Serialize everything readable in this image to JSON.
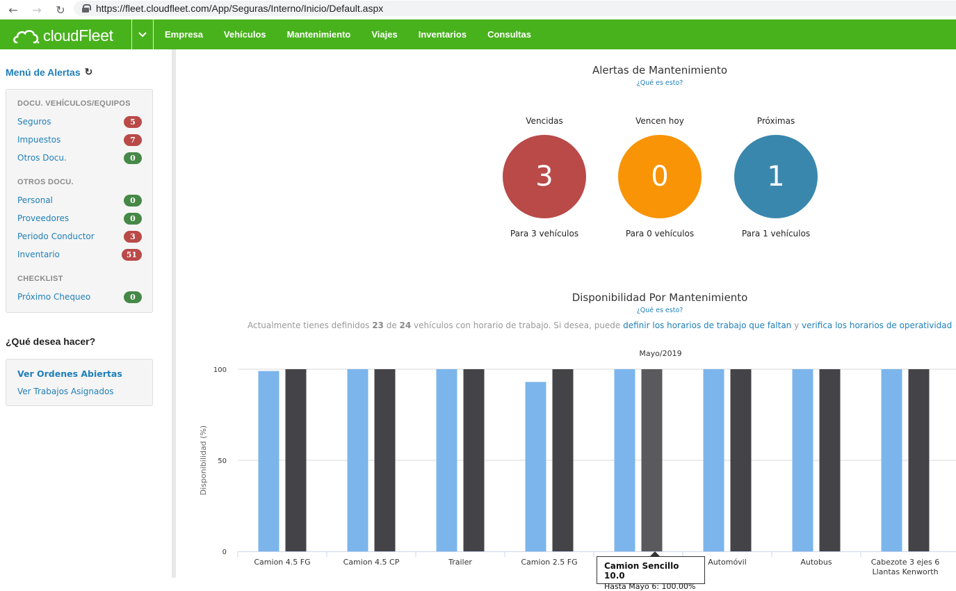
{
  "browser": {
    "url": "https://fleet.cloudfleet.com/App/Seguras/Interno/Inicio/Default.aspx"
  },
  "topnav": {
    "logo": "cloudFleet",
    "menu": [
      "Empresa",
      "Vehículos",
      "Mantenimiento",
      "Viajes",
      "Inventarios",
      "Consultas"
    ],
    "bg_color": "#48b21c"
  },
  "sidebar": {
    "title": "Menú de Alertas",
    "sections": [
      {
        "heading": "DOCU. VEHÍCULOS/EQUIPOS",
        "items": [
          {
            "label": "Seguros",
            "count": "5",
            "status": "red"
          },
          {
            "label": "Impuestos",
            "count": "7",
            "status": "red"
          },
          {
            "label": "Otros Docu.",
            "count": "0",
            "status": "green"
          }
        ]
      },
      {
        "heading": "OTROS DOCU.",
        "items": [
          {
            "label": "Personal",
            "count": "0",
            "status": "green"
          },
          {
            "label": "Proveedores",
            "count": "0",
            "status": "green"
          },
          {
            "label": "Periodo Conductor",
            "count": "3",
            "status": "red"
          },
          {
            "label": "Inventario",
            "count": "51",
            "status": "red"
          }
        ]
      },
      {
        "heading": "CHECKLIST",
        "items": [
          {
            "label": "Próximo Chequeo",
            "count": "0",
            "status": "green"
          }
        ]
      }
    ],
    "question": "¿Qué desea hacer?",
    "actions": [
      "Ver Ordenes Abiertas",
      "Ver Trabajos Asignados"
    ]
  },
  "alerts": {
    "title": "Alertas de Mantenimiento",
    "help": "¿Qué es esto?",
    "cards": [
      {
        "label": "Vencidas",
        "value": "3",
        "sub": "Para 3 vehículos",
        "color": "#b94a48"
      },
      {
        "label": "Vencen hoy",
        "value": "0",
        "sub": "Para 0 vehículos",
        "color": "#f89406"
      },
      {
        "label": "Próximas",
        "value": "1",
        "sub": "Para 1 vehículos",
        "color": "#3a87ad"
      }
    ]
  },
  "availability": {
    "title": "Disponibilidad Por Mantenimiento",
    "help": "¿Qué es esto?",
    "text_prefix": "Actualmente tienes definidos ",
    "defined": "23",
    "text_mid": " de ",
    "total": "24",
    "text_suffix": " vehículos con horario de trabajo. Si desea, puede ",
    "link1": "definir los horarios de trabajo que faltan",
    "text_and": " y ",
    "link2": "verifica los horarios de operatividad"
  },
  "chart_data": {
    "type": "bar",
    "title": "Mayo/2019",
    "ylabel": "Disponibilidad (%)",
    "xlabel": "",
    "ylim": [
      0,
      100
    ],
    "yticks": [
      0,
      50,
      100
    ],
    "categories": [
      "Camion 4.5 FG",
      "Camion 4.5 CP",
      "Trailer",
      "Camion 2.5 FG",
      "Camion Sencillo 10.0",
      "Automóvil",
      "Autobus",
      "Cabezote 3 ejes 6 Llantas Kenworth"
    ],
    "series": [
      {
        "values": [
          99,
          100,
          100,
          93,
          100,
          100,
          100,
          100
        ],
        "color": "#7cb5ec"
      },
      {
        "values": [
          100,
          100,
          100,
          100,
          100,
          100,
          100,
          100
        ],
        "color": "#434348"
      }
    ],
    "category_labels_shown": [
      "Camion 4.5 FG",
      "Camion 4.5 CP",
      "Trailer",
      "Camion 2.5 FG",
      "Camion Sencillo 10.0",
      "Automóvil",
      "Autobus",
      "Cabezote 3 ejes 6|Llantas Kenworth"
    ]
  },
  "tooltip": {
    "title": "Camion Sencillo 10.0",
    "line": "Hasta Mayo 6: 100.00%"
  }
}
